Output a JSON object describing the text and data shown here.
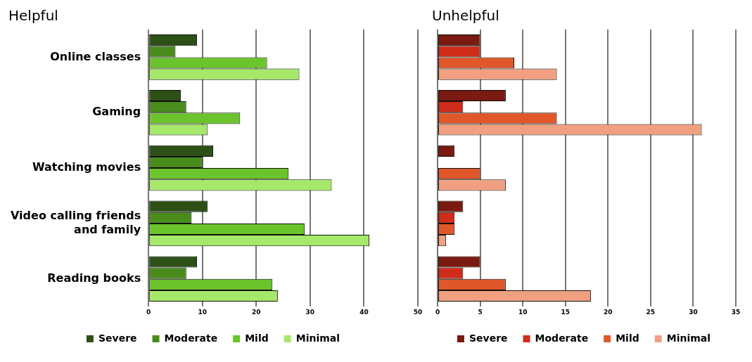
{
  "chart_data": [
    {
      "type": "bar",
      "orientation": "horizontal",
      "title": "Helpful",
      "categories": [
        "Online classes",
        "Gaming",
        "Watching movies",
        "Video calling friends and family",
        "Reading books"
      ],
      "series": [
        {
          "name": "Severe",
          "color": "#2d5016",
          "values": [
            9,
            6,
            12,
            11,
            9
          ]
        },
        {
          "name": "Moderate",
          "color": "#4a8c1c",
          "values": [
            5,
            7,
            10,
            8,
            7
          ]
        },
        {
          "name": "Mild",
          "color": "#6cc42c",
          "values": [
            22,
            17,
            26,
            29,
            23
          ]
        },
        {
          "name": "Minimal",
          "color": "#a6e86a",
          "values": [
            28,
            11,
            34,
            41,
            24
          ]
        }
      ],
      "xlim": [
        0,
        50
      ],
      "xticks": [
        0,
        10,
        20,
        30,
        40,
        50
      ],
      "grid": "x",
      "legend": "bottom"
    },
    {
      "type": "bar",
      "orientation": "horizontal",
      "title": "Unhelpful",
      "categories": [
        null,
        null,
        null,
        null,
        null
      ],
      "series": [
        {
          "name": "Severe",
          "color": "#7a1a10",
          "values": [
            5,
            8,
            2,
            3,
            5
          ]
        },
        {
          "name": "Moderate",
          "color": "#d02c1a",
          "values": [
            5,
            3,
            0,
            2,
            3
          ]
        },
        {
          "name": "Mild",
          "color": "#e0582a",
          "values": [
            9,
            14,
            5,
            2,
            8
          ]
        },
        {
          "name": "Minimal",
          "color": "#f0a080",
          "values": [
            14,
            31,
            8,
            1,
            18
          ]
        }
      ],
      "xlim": [
        0,
        35
      ],
      "xticks": [
        0,
        5,
        10,
        15,
        20,
        25,
        30,
        35
      ],
      "grid": "x",
      "legend": "bottom",
      "tick_labels": "x"
    }
  ]
}
